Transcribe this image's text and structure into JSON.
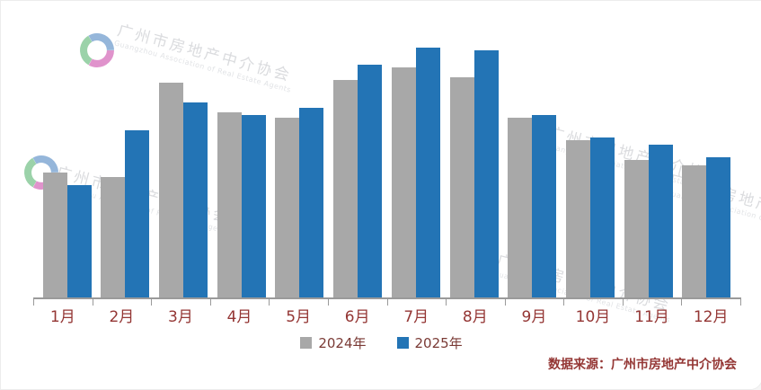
{
  "chart_data": {
    "type": "bar",
    "categories": [
      "1月",
      "2月",
      "3月",
      "4月",
      "5月",
      "6月",
      "7月",
      "8月",
      "9月",
      "10月",
      "11月",
      "12月"
    ],
    "series": [
      {
        "name": "2024年",
        "color": "#a8a8a8",
        "values": [
          50,
          48,
          86,
          74,
          72,
          87,
          92,
          88,
          72,
          63,
          55,
          53
        ]
      },
      {
        "name": "2025年",
        "color": "#2374b5",
        "values": [
          45,
          67,
          78,
          73,
          76,
          93,
          100,
          99,
          73,
          64,
          61,
          56
        ]
      }
    ],
    "title": "",
    "xlabel": "",
    "ylabel": "",
    "ylim": [
      0,
      110
    ],
    "grid": false,
    "legend_position": "bottom"
  },
  "source": {
    "label": "数据来源：广州市房地产中介协会"
  },
  "watermark": {
    "text": "广州市房地产中介协会",
    "subtext": "Guangzhou Association of Real Estate Agents"
  },
  "colors": {
    "axis": "#9a9a9a",
    "month_label": "#943634",
    "source_text": "#943634"
  }
}
